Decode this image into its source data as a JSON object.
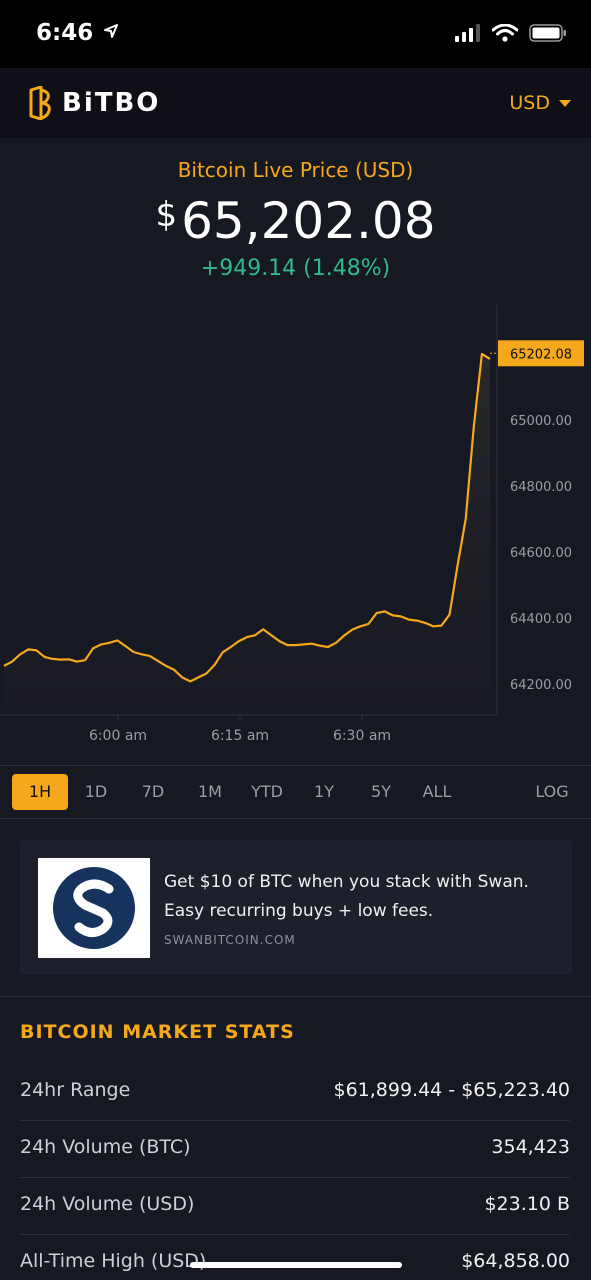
{
  "status_bar": {
    "time": "6:46"
  },
  "header": {
    "brand": "BiTBO",
    "currency": "USD"
  },
  "price": {
    "title": "Bitcoin Live Price (USD)",
    "currency_symbol": "$",
    "value": "65,202.08",
    "change": "+949.14 (1.48%)"
  },
  "chart_data": {
    "type": "area",
    "x_ticks": [
      "6:00 am",
      "6:15 am",
      "6:30 am"
    ],
    "y_ticks": [
      "64200.00",
      "64400.00",
      "64600.00",
      "64800.00",
      "65000.00"
    ],
    "ylim": [
      64100,
      65310
    ],
    "current_label": "65202.08",
    "values": [
      64255,
      64268,
      64290,
      64305,
      64302,
      64282,
      64276,
      64274,
      64275,
      64268,
      64272,
      64308,
      64320,
      64325,
      64332,
      64315,
      64297,
      64290,
      64285,
      64270,
      64255,
      64243,
      64220,
      64208,
      64220,
      64232,
      64258,
      64296,
      64312,
      64330,
      64342,
      64348,
      64366,
      64348,
      64330,
      64318,
      64318,
      64320,
      64322,
      64316,
      64312,
      64325,
      64347,
      64365,
      64375,
      64382,
      64415,
      64420,
      64408,
      64405,
      64395,
      64392,
      64385,
      64375,
      64377,
      64410,
      64560,
      64700,
      64980,
      65200,
      65185
    ],
    "line_color": "#f5a81c"
  },
  "time_tabs": [
    "1H",
    "1D",
    "7D",
    "1M",
    "YTD",
    "1Y",
    "5Y",
    "ALL"
  ],
  "log_label": "LOG",
  "ad": {
    "text": "Get $10 of BTC when you stack with Swan. Easy recurring buys + low fees.",
    "domain": "SWANBITCOIN.COM"
  },
  "stats": {
    "title": "BITCOIN MARKET STATS",
    "rows": [
      {
        "label": "24hr Range",
        "value": "$61,899.44 - $65,223.40"
      },
      {
        "label": "24h Volume (BTC)",
        "value": "354,423"
      },
      {
        "label": "24h Volume (USD)",
        "value": "$23.10 B"
      },
      {
        "label": "All-Time High (USD)",
        "value": "$64,858.00"
      }
    ]
  }
}
